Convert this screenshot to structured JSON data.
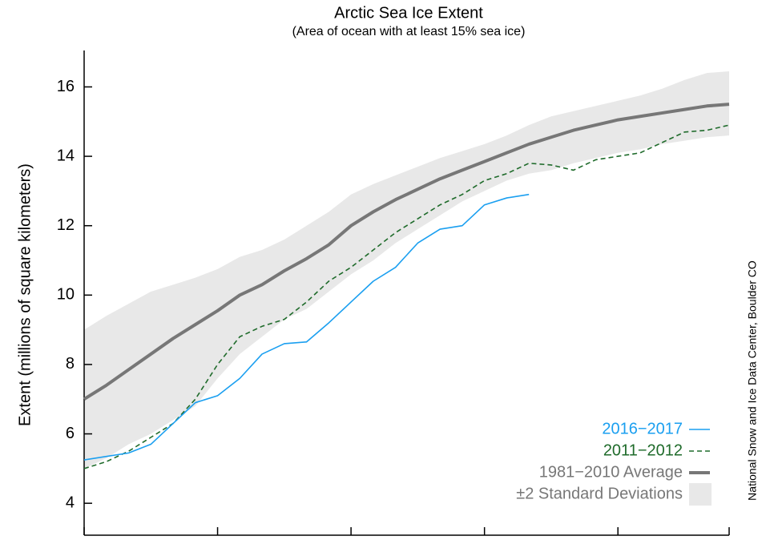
{
  "chart_data": {
    "type": "line",
    "title": "Arctic Sea Ice Extent",
    "subtitle": "(Area of ocean with at least 15% sea ice)",
    "y_label": "Extent (millions of square kilometers)",
    "source": "National Snow and Ice Data Center, Boulder CO",
    "categories": [
      null,
      null,
      null,
      null,
      null,
      null,
      null,
      null,
      null,
      null,
      null,
      null,
      null,
      null,
      null,
      null,
      null,
      null,
      null,
      null,
      null,
      null,
      null,
      null,
      null,
      null,
      null,
      null,
      null,
      null
    ],
    "ylim": [
      3.08,
      17.05
    ],
    "yticks": [
      4,
      6,
      8,
      10,
      12,
      14,
      16
    ],
    "series": [
      {
        "name": "2016−2017",
        "color": "#1a9ff0",
        "style": "solid",
        "values": [
          5.25,
          5.35,
          5.45,
          5.7,
          6.3,
          6.9,
          7.1,
          7.6,
          8.3,
          8.6,
          8.65,
          9.2,
          9.8,
          10.4,
          10.8,
          11.5,
          11.9,
          12.0,
          12.6,
          12.8,
          12.9,
          null,
          null,
          null,
          null,
          null,
          null,
          null,
          null,
          null
        ]
      },
      {
        "name": "2011−2012",
        "color": "#1f6b2b",
        "style": "dashed",
        "values": [
          5.0,
          5.2,
          5.5,
          5.9,
          6.3,
          7.0,
          8.0,
          8.8,
          9.1,
          9.3,
          9.8,
          10.4,
          10.8,
          11.3,
          11.8,
          12.2,
          12.6,
          12.9,
          13.3,
          13.5,
          13.8,
          13.75,
          13.6,
          13.9,
          14.0,
          14.1,
          14.4,
          14.7,
          14.75,
          14.9
        ]
      },
      {
        "name": "1981−2010 Average",
        "color": "#777777",
        "style": "thick",
        "values": [
          7.0,
          7.4,
          7.85,
          8.3,
          8.75,
          9.15,
          9.55,
          10.0,
          10.3,
          10.7,
          11.05,
          11.45,
          12.0,
          12.4,
          12.75,
          13.05,
          13.35,
          13.6,
          13.85,
          14.1,
          14.35,
          14.55,
          14.75,
          14.9,
          15.05,
          15.15,
          15.25,
          15.35,
          15.45,
          15.5
        ]
      }
    ],
    "band": {
      "name": "±2 Standard Deviations",
      "color": "#e8e8e8",
      "upper": [
        9.0,
        9.4,
        9.75,
        10.1,
        10.3,
        10.5,
        10.75,
        11.1,
        11.3,
        11.6,
        12.0,
        12.4,
        12.9,
        13.2,
        13.45,
        13.7,
        13.95,
        14.15,
        14.35,
        14.6,
        14.9,
        15.15,
        15.3,
        15.45,
        15.6,
        15.75,
        15.95,
        16.2,
        16.4,
        16.45
      ],
      "lower": [
        5.0,
        5.3,
        5.7,
        6.0,
        6.4,
        6.8,
        7.6,
        8.3,
        8.8,
        9.3,
        9.6,
        10.1,
        10.6,
        11.0,
        11.5,
        11.9,
        12.3,
        12.7,
        13.0,
        13.3,
        13.5,
        13.6,
        13.8,
        13.95,
        14.1,
        14.2,
        14.35,
        14.45,
        14.55,
        14.6
      ]
    }
  }
}
